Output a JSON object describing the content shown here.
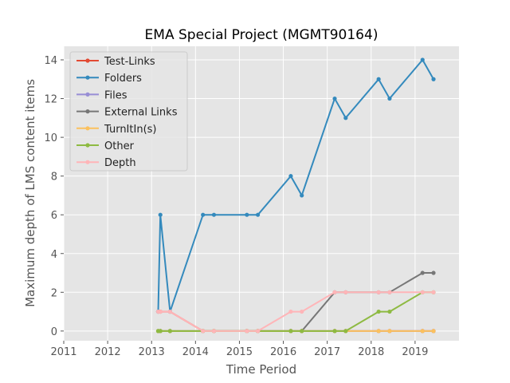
{
  "chart_data": {
    "type": "line",
    "title": "EMA Special Project (MGMT90164)",
    "xlabel": "Time Period",
    "ylabel": "Maximum depth of LMS content items",
    "xlim": [
      2011,
      2020
    ],
    "ylim": [
      -0.5,
      14.7
    ],
    "x_ticks": [
      2011,
      2012,
      2013,
      2014,
      2015,
      2016,
      2017,
      2018,
      2019
    ],
    "y_ticks": [
      0,
      2,
      4,
      6,
      8,
      10,
      12,
      14
    ],
    "grid": true,
    "legend_position": "top-left",
    "x": [
      2013.15,
      2013.2,
      2013.42,
      2014.17,
      2014.42,
      2015.17,
      2015.42,
      2016.17,
      2016.42,
      2017.17,
      2017.42,
      2018.17,
      2018.42,
      2019.17,
      2019.42
    ],
    "series": [
      {
        "name": "Test-Links",
        "color": "#e24a33",
        "values": [
          1,
          1,
          1,
          0,
          0,
          0,
          0,
          0,
          0,
          0,
          0,
          0,
          0,
          0,
          0
        ]
      },
      {
        "name": "Folders",
        "color": "#348abd",
        "values": [
          1,
          6,
          1,
          6,
          6,
          6,
          6,
          8,
          7,
          12,
          11,
          13,
          12,
          14,
          13
        ]
      },
      {
        "name": "Files",
        "color": "#988ed5",
        "values": [
          0,
          0,
          0,
          0,
          0,
          0,
          0,
          0,
          0,
          0,
          0,
          0,
          0,
          0,
          0
        ]
      },
      {
        "name": "External Links",
        "color": "#777777",
        "values": [
          0,
          0,
          0,
          0,
          0,
          0,
          0,
          0,
          0,
          2,
          2,
          2,
          2,
          3,
          3
        ]
      },
      {
        "name": "TurnItIn(s)",
        "color": "#fbc15e",
        "values": [
          0,
          0,
          0,
          0,
          0,
          0,
          0,
          0,
          0,
          0,
          0,
          0,
          0,
          0,
          0
        ]
      },
      {
        "name": "Other",
        "color": "#8eba42",
        "values": [
          0,
          0,
          0,
          0,
          0,
          0,
          0,
          0,
          0,
          0,
          0,
          1,
          1,
          2,
          2
        ]
      },
      {
        "name": "Depth",
        "color": "#ffb5b8",
        "values": [
          1,
          1,
          1,
          0,
          0,
          0,
          0,
          1,
          1,
          2,
          2,
          2,
          2,
          2,
          2
        ]
      }
    ]
  }
}
